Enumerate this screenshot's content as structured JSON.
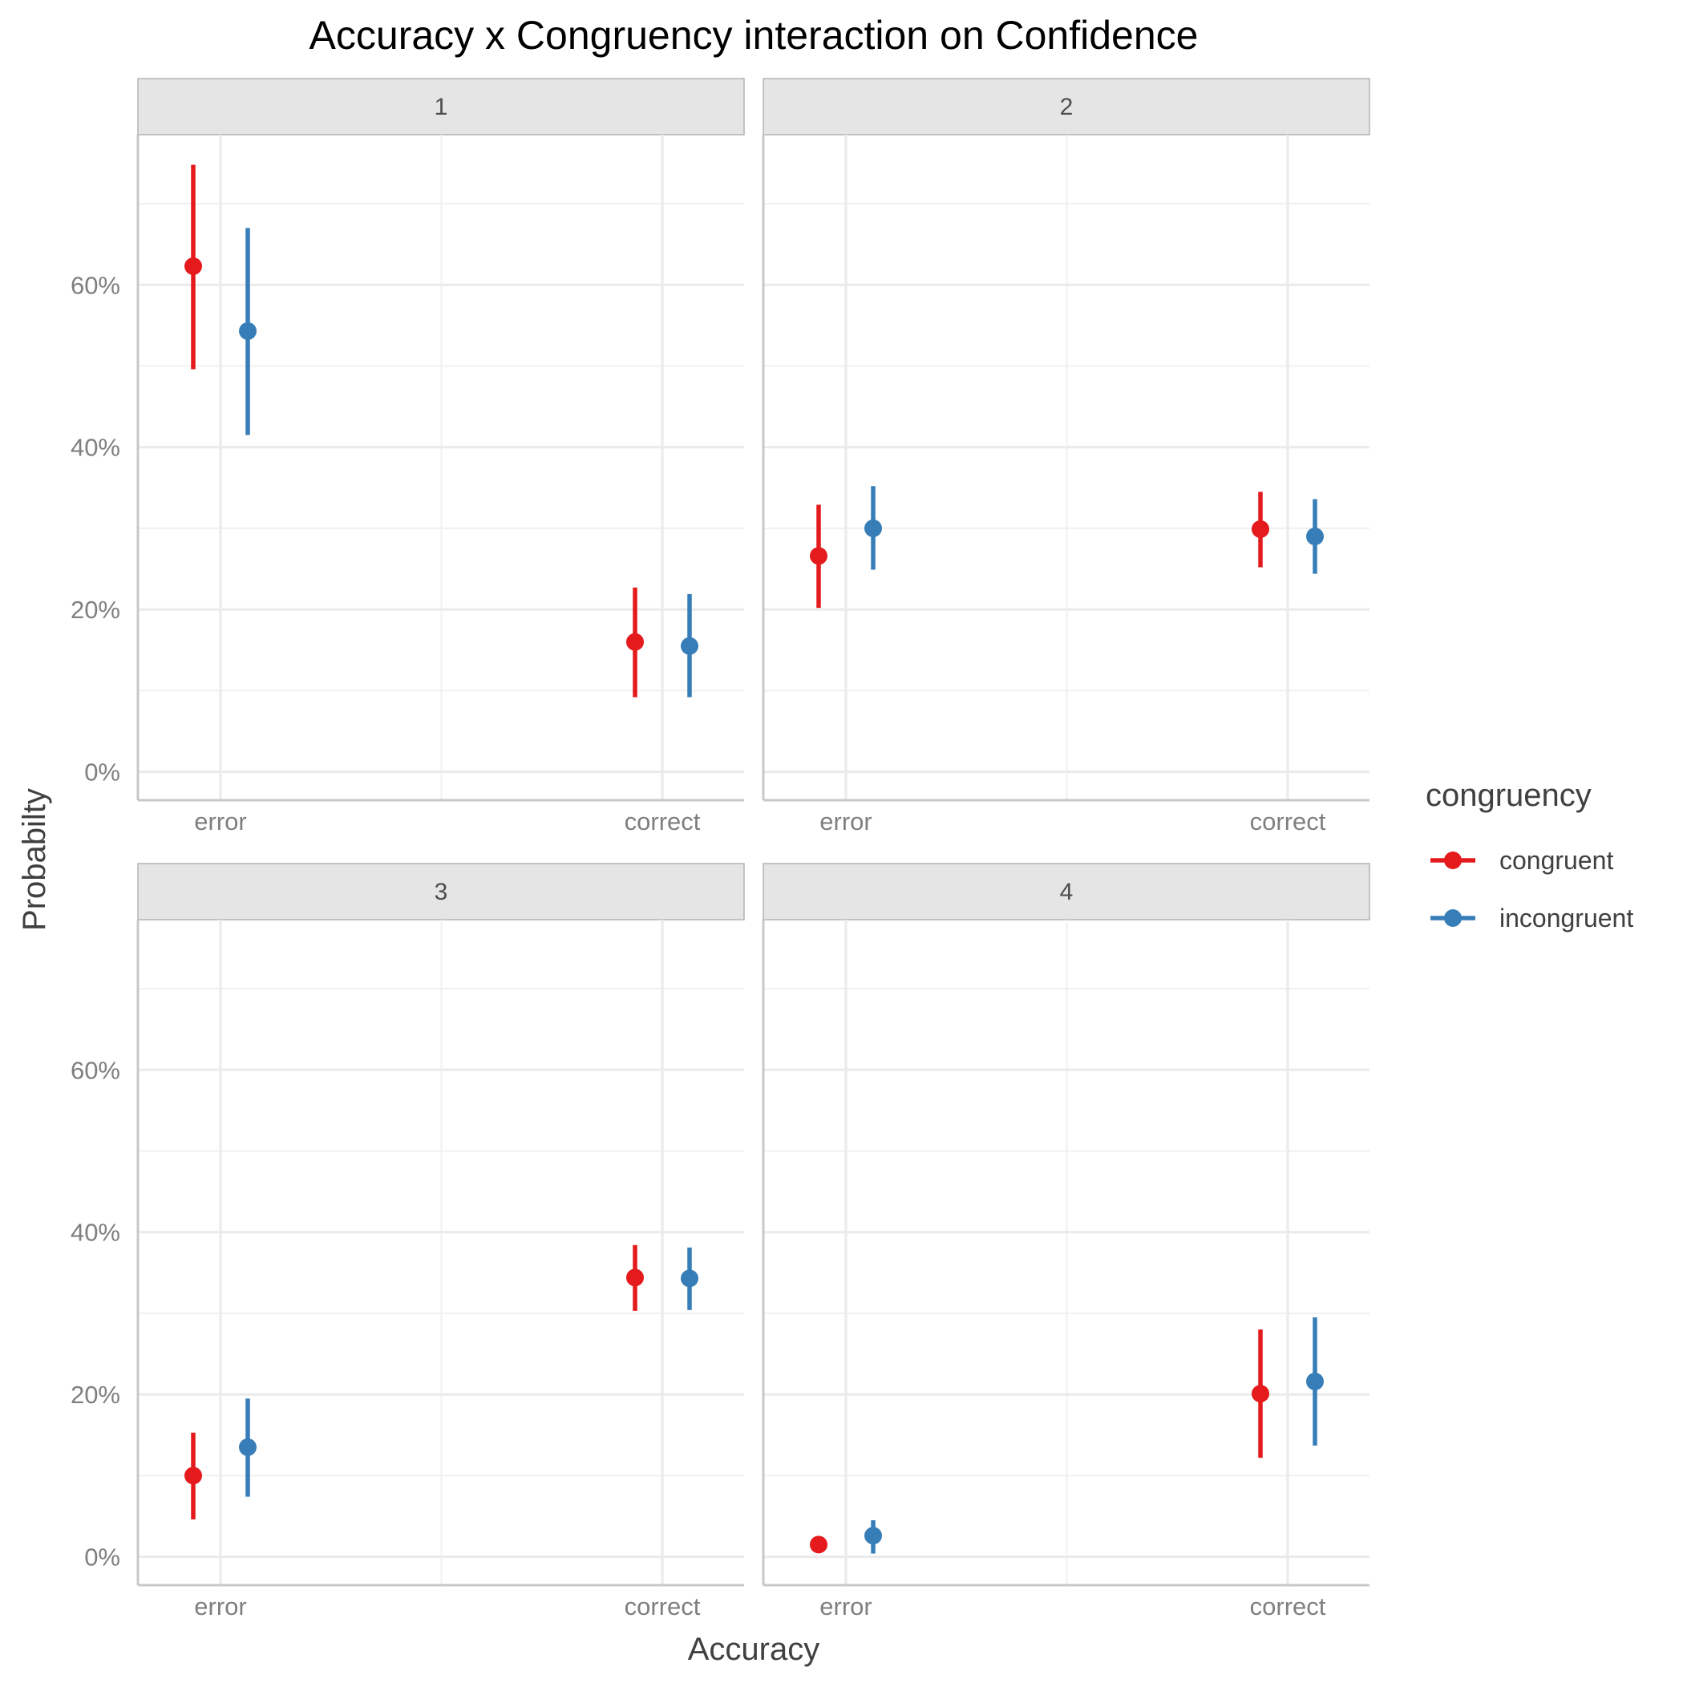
{
  "chart_data": {
    "type": "pointrange",
    "title": "Accuracy x Congruency interaction on Confidence",
    "xlabel": "Accuracy",
    "ylabel": "Probabilty",
    "categories": [
      "error",
      "correct"
    ],
    "y_ticks": [
      0,
      20,
      40,
      60
    ],
    "y_tick_labels": [
      "0%",
      "20%",
      "40%",
      "60%"
    ],
    "ylim": [
      -3.5,
      78.5
    ],
    "grid": true,
    "legend": {
      "title": "congruency",
      "position": "right",
      "entries": [
        {
          "name": "congruent",
          "color": "#E41A1C"
        },
        {
          "name": "incongruent",
          "color": "#377EB8"
        }
      ]
    },
    "facets": [
      {
        "label": "1",
        "series": [
          {
            "name": "congruent",
            "points": [
              {
                "x": "error",
                "y": 62.3,
                "lo": 49.6,
                "hi": 74.8
              },
              {
                "x": "correct",
                "y": 16.0,
                "lo": 9.2,
                "hi": 22.7
              }
            ]
          },
          {
            "name": "incongruent",
            "points": [
              {
                "x": "error",
                "y": 54.3,
                "lo": 41.5,
                "hi": 67.0
              },
              {
                "x": "correct",
                "y": 15.5,
                "lo": 9.2,
                "hi": 21.9
              }
            ]
          }
        ]
      },
      {
        "label": "2",
        "series": [
          {
            "name": "congruent",
            "points": [
              {
                "x": "error",
                "y": 26.6,
                "lo": 20.2,
                "hi": 32.9
              },
              {
                "x": "correct",
                "y": 29.9,
                "lo": 25.2,
                "hi": 34.5
              }
            ]
          },
          {
            "name": "incongruent",
            "points": [
              {
                "x": "error",
                "y": 30.0,
                "lo": 24.9,
                "hi": 35.2
              },
              {
                "x": "correct",
                "y": 29.0,
                "lo": 24.4,
                "hi": 33.6
              }
            ]
          }
        ]
      },
      {
        "label": "3",
        "series": [
          {
            "name": "congruent",
            "points": [
              {
                "x": "error",
                "y": 10.0,
                "lo": 4.6,
                "hi": 15.3
              },
              {
                "x": "correct",
                "y": 34.4,
                "lo": 30.3,
                "hi": 38.4
              }
            ]
          },
          {
            "name": "incongruent",
            "points": [
              {
                "x": "error",
                "y": 13.5,
                "lo": 7.4,
                "hi": 19.5
              },
              {
                "x": "correct",
                "y": 34.3,
                "lo": 30.4,
                "hi": 38.1
              }
            ]
          }
        ]
      },
      {
        "label": "4",
        "series": [
          {
            "name": "congruent",
            "points": [
              {
                "x": "error",
                "y": 1.5,
                "lo": 0.5,
                "hi": 2.4
              },
              {
                "x": "correct",
                "y": 20.1,
                "lo": 12.2,
                "hi": 28.0
              }
            ]
          },
          {
            "name": "incongruent",
            "points": [
              {
                "x": "error",
                "y": 2.6,
                "lo": 0.4,
                "hi": 4.5
              },
              {
                "x": "correct",
                "y": 21.6,
                "lo": 13.7,
                "hi": 29.5
              }
            ]
          }
        ]
      }
    ]
  }
}
